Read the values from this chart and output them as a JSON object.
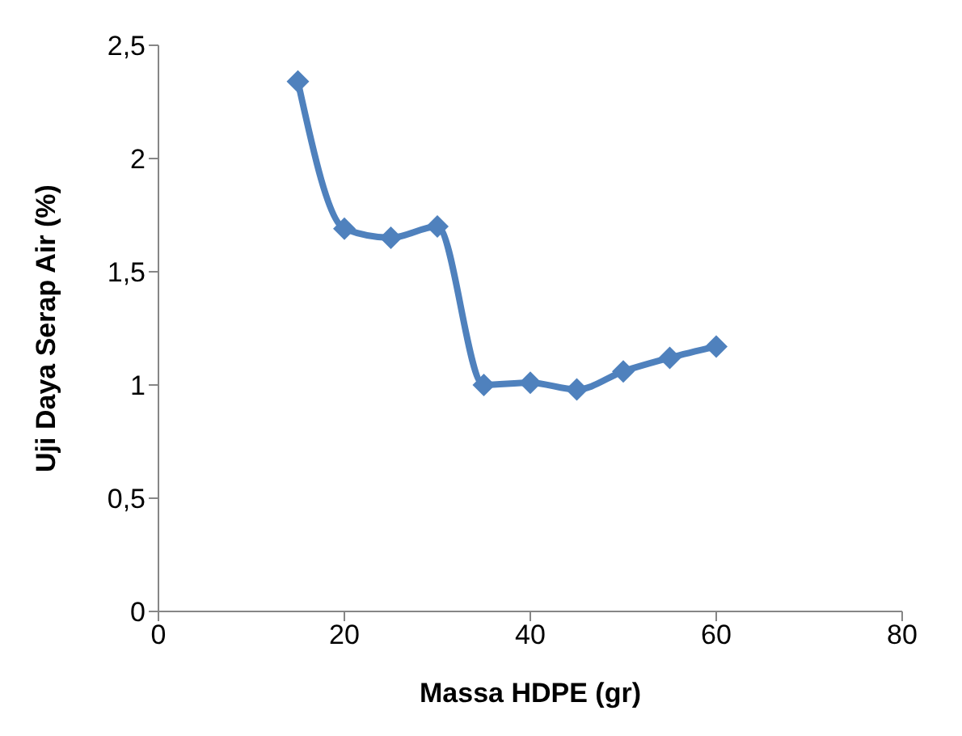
{
  "chart_data": {
    "type": "line",
    "xlabel": "Massa HDPE (gr)",
    "ylabel": "Uji Daya Serap Air (%)",
    "x": [
      15,
      20,
      25,
      30,
      35,
      40,
      45,
      50,
      55,
      60
    ],
    "series": [
      {
        "color": "#4f81bd",
        "values": [
          2.34,
          1.69,
          1.65,
          1.7,
          1.0,
          1.01,
          0.98,
          1.06,
          1.12,
          1.17
        ]
      }
    ],
    "xlim": [
      0,
      80
    ],
    "xticks": [
      0,
      20,
      40,
      60,
      80
    ],
    "ylim": [
      0,
      2.5
    ],
    "yticks": [
      0,
      {
        "value": 0.5,
        "label": "0,5"
      },
      1,
      {
        "value": 1.5,
        "label": "1,5"
      },
      2,
      {
        "value": 2.5,
        "label": "2,5"
      }
    ],
    "grid": false,
    "legend": false,
    "marker": "diamond",
    "line_style": "solid"
  }
}
